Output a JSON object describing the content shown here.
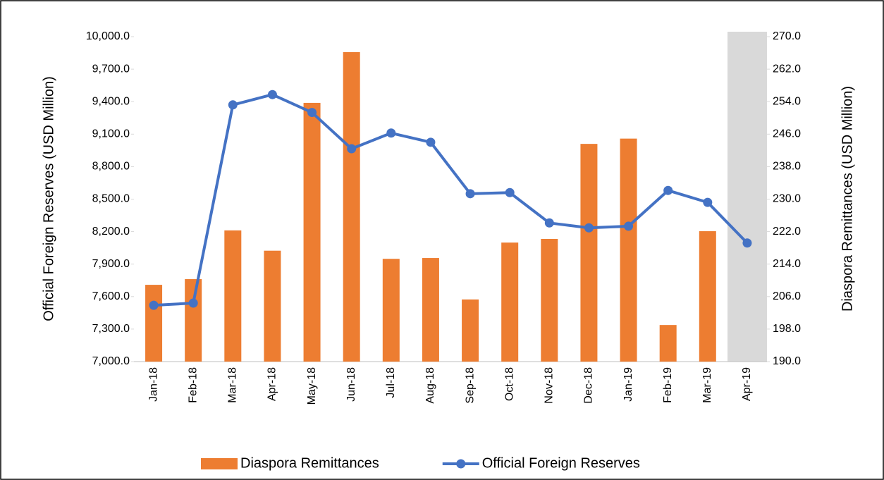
{
  "chart_data": {
    "type": "bar",
    "y_label": "Official Foreign Reserves (USD Million)",
    "y2_label": "Diaspora Remittances (USD Million)",
    "categories": [
      "Jan-18",
      "Feb-18",
      "Mar-18",
      "Apr-18",
      "May-18",
      "Jun-18",
      "Jul-18",
      "Aug-18",
      "Sep-18",
      "Oct-18",
      "Nov-18",
      "Dec-18",
      "Jan-19",
      "Feb-19",
      "Mar-19",
      "Apr-19"
    ],
    "series": [
      {
        "name": "Diaspora Remittances",
        "type": "bar",
        "axis": "y2",
        "color": "#ed7d31",
        "values": [
          208.9,
          210.3,
          222.3,
          217.3,
          253.7,
          266.2,
          215.3,
          215.5,
          205.3,
          219.3,
          220.2,
          243.6,
          244.9,
          199.0,
          222.1,
          null
        ]
      },
      {
        "name": "Official Foreign Reserves",
        "type": "line",
        "color": "#4472c4",
        "values": [
          7520,
          7540,
          9370,
          9465,
          9300,
          8965,
          9110,
          9025,
          8550,
          8560,
          8280,
          8235,
          8250,
          8580,
          8470,
          8095
        ]
      }
    ],
    "ylim": [
      7000,
      10000
    ],
    "yticks": [
      {
        "value": 7000,
        "label": "7,000.0"
      },
      {
        "value": 7300,
        "label": "7,300.0"
      },
      {
        "value": 7600,
        "label": "7,600.0"
      },
      {
        "value": 7900,
        "label": "7,900.0"
      },
      {
        "value": 8200,
        "label": "8,200.0"
      },
      {
        "value": 8500,
        "label": "8,500.0"
      },
      {
        "value": 8800,
        "label": "8,800.0"
      },
      {
        "value": 9100,
        "label": "9,100.0"
      },
      {
        "value": 9400,
        "label": "9,400.0"
      },
      {
        "value": 9700,
        "label": "9,700.0"
      },
      {
        "value": 10000,
        "label": "10,000.0"
      }
    ],
    "y2lim": [
      190,
      270
    ],
    "y2ticks": [
      {
        "value": 190,
        "label": "190.0"
      },
      {
        "value": 198,
        "label": "198.0"
      },
      {
        "value": 206,
        "label": "206.0"
      },
      {
        "value": 214,
        "label": "214.0"
      },
      {
        "value": 222,
        "label": "222.0"
      },
      {
        "value": 230,
        "label": "230.0"
      },
      {
        "value": 238,
        "label": "238.0"
      },
      {
        "value": 246,
        "label": "246.0"
      },
      {
        "value": 254,
        "label": "254.0"
      },
      {
        "value": 262,
        "label": "262.0"
      },
      {
        "value": 270,
        "label": "270.0"
      }
    ],
    "grid": false,
    "legend": "bottom"
  }
}
